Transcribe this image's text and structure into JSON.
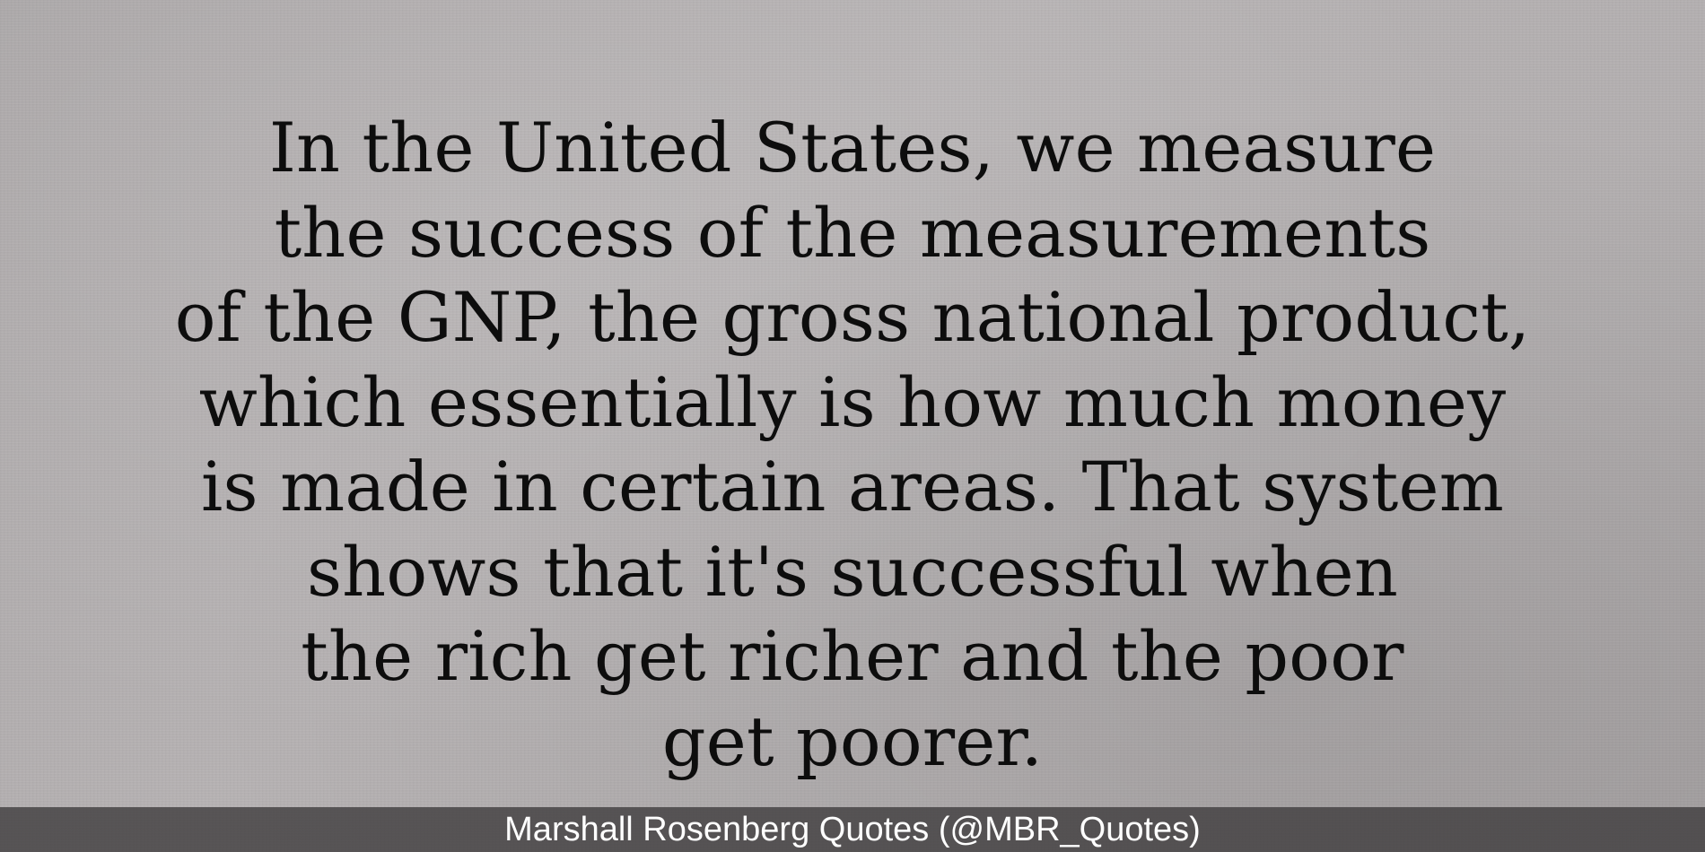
{
  "quote": {
    "lines": [
      "In the United States, we measure",
      "the success of the measurements",
      "of the GNP, the gross national product,",
      "which essentially is how much money",
      "is made in certain areas. That system",
      "shows that it's successful when",
      "the rich get richer and the poor",
      "get poorer."
    ]
  },
  "footer": {
    "attribution": "Marshall Rosenberg Quotes (@MBR_Quotes)"
  }
}
